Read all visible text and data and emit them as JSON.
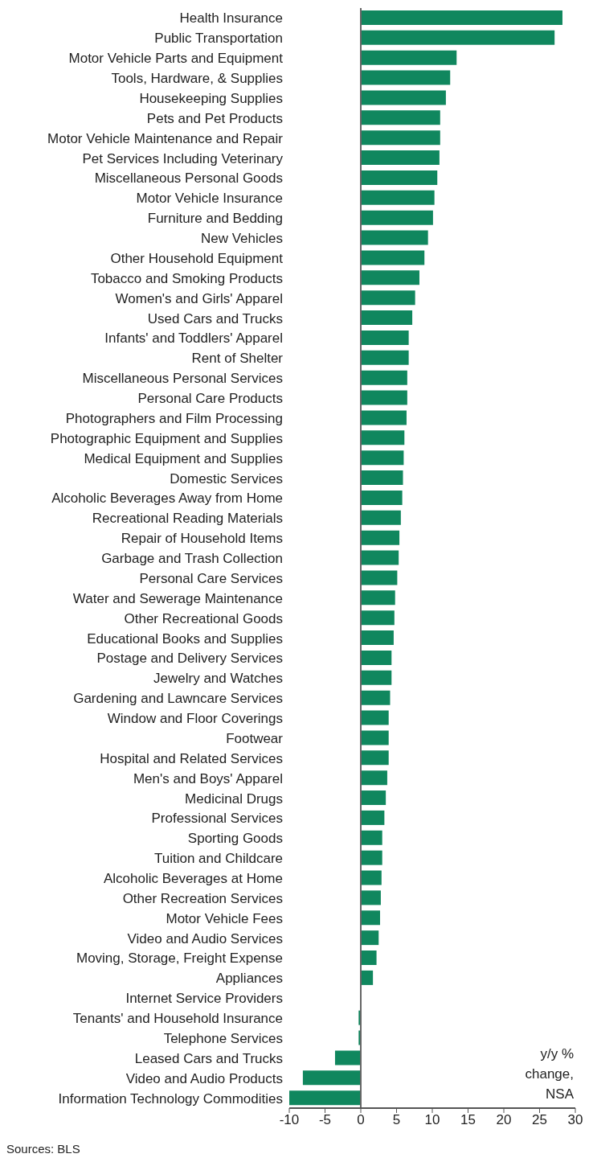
{
  "chart_data": {
    "type": "bar",
    "orientation": "horizontal",
    "categories": [
      "Health Insurance",
      "Public Transportation",
      "Motor Vehicle Parts and Equipment",
      "Tools, Hardware, & Supplies",
      "Housekeeping Supplies",
      "Pets and Pet Products",
      "Motor Vehicle Maintenance and Repair",
      "Pet Services Including Veterinary",
      "Miscellaneous Personal Goods",
      "Motor Vehicle Insurance",
      "Furniture and Bedding",
      "New Vehicles",
      "Other Household Equipment",
      "Tobacco and Smoking Products",
      "Women's and Girls' Apparel",
      "Used Cars and Trucks",
      "Infants' and Toddlers' Apparel",
      "Rent of Shelter",
      "Miscellaneous Personal Services",
      "Personal Care Products",
      "Photographers and Film Processing",
      "Photographic Equipment and Supplies",
      "Medical Equipment and Supplies",
      "Domestic Services",
      "Alcoholic Beverages Away from Home",
      "Recreational Reading Materials",
      "Repair of Household Items",
      "Garbage and Trash Collection",
      "Personal Care Services",
      "Water and Sewerage Maintenance",
      "Other Recreational Goods",
      "Educational Books and Supplies",
      "Postage and Delivery Services",
      "Jewelry and Watches",
      "Gardening and Lawncare Services",
      "Window and Floor Coverings",
      "Footwear",
      "Hospital and Related Services",
      "Men's and Boys' Apparel",
      "Medicinal Drugs",
      "Professional Services",
      "Sporting Goods",
      "Tuition and Childcare",
      "Alcoholic Beverages at Home",
      "Other Recreation Services",
      "Motor Vehicle Fees",
      "Video and Audio Services",
      "Moving, Storage, Freight Expense",
      "Appliances",
      "Internet Service Providers",
      "Tenants' and Household Insurance",
      "Telephone Services",
      "Leased Cars and Trucks",
      "Video and Audio Products",
      "Information Technology Commodities"
    ],
    "values": [
      28.2,
      27.1,
      13.4,
      12.5,
      11.9,
      11.1,
      11.1,
      11.0,
      10.7,
      10.3,
      10.1,
      9.4,
      8.9,
      8.2,
      7.6,
      7.2,
      6.7,
      6.7,
      6.5,
      6.5,
      6.4,
      6.1,
      6.0,
      5.9,
      5.8,
      5.6,
      5.4,
      5.3,
      5.1,
      4.8,
      4.7,
      4.6,
      4.3,
      4.3,
      4.1,
      3.9,
      3.9,
      3.9,
      3.7,
      3.5,
      3.3,
      3.0,
      3.0,
      2.9,
      2.8,
      2.7,
      2.5,
      2.2,
      1.7,
      0,
      -0.3,
      -0.3,
      -3.6,
      -8.1,
      -10.0
    ],
    "color": "#10875e",
    "xlim": [
      -10,
      30
    ],
    "xticks": [
      -10,
      -5,
      0,
      5,
      10,
      15,
      20,
      25,
      30
    ],
    "grid": false,
    "ref_lines": [
      {
        "axis": "x",
        "value": 0
      }
    ],
    "annotations": [
      "y/y % change, NSA",
      "Sources: BLS"
    ]
  }
}
